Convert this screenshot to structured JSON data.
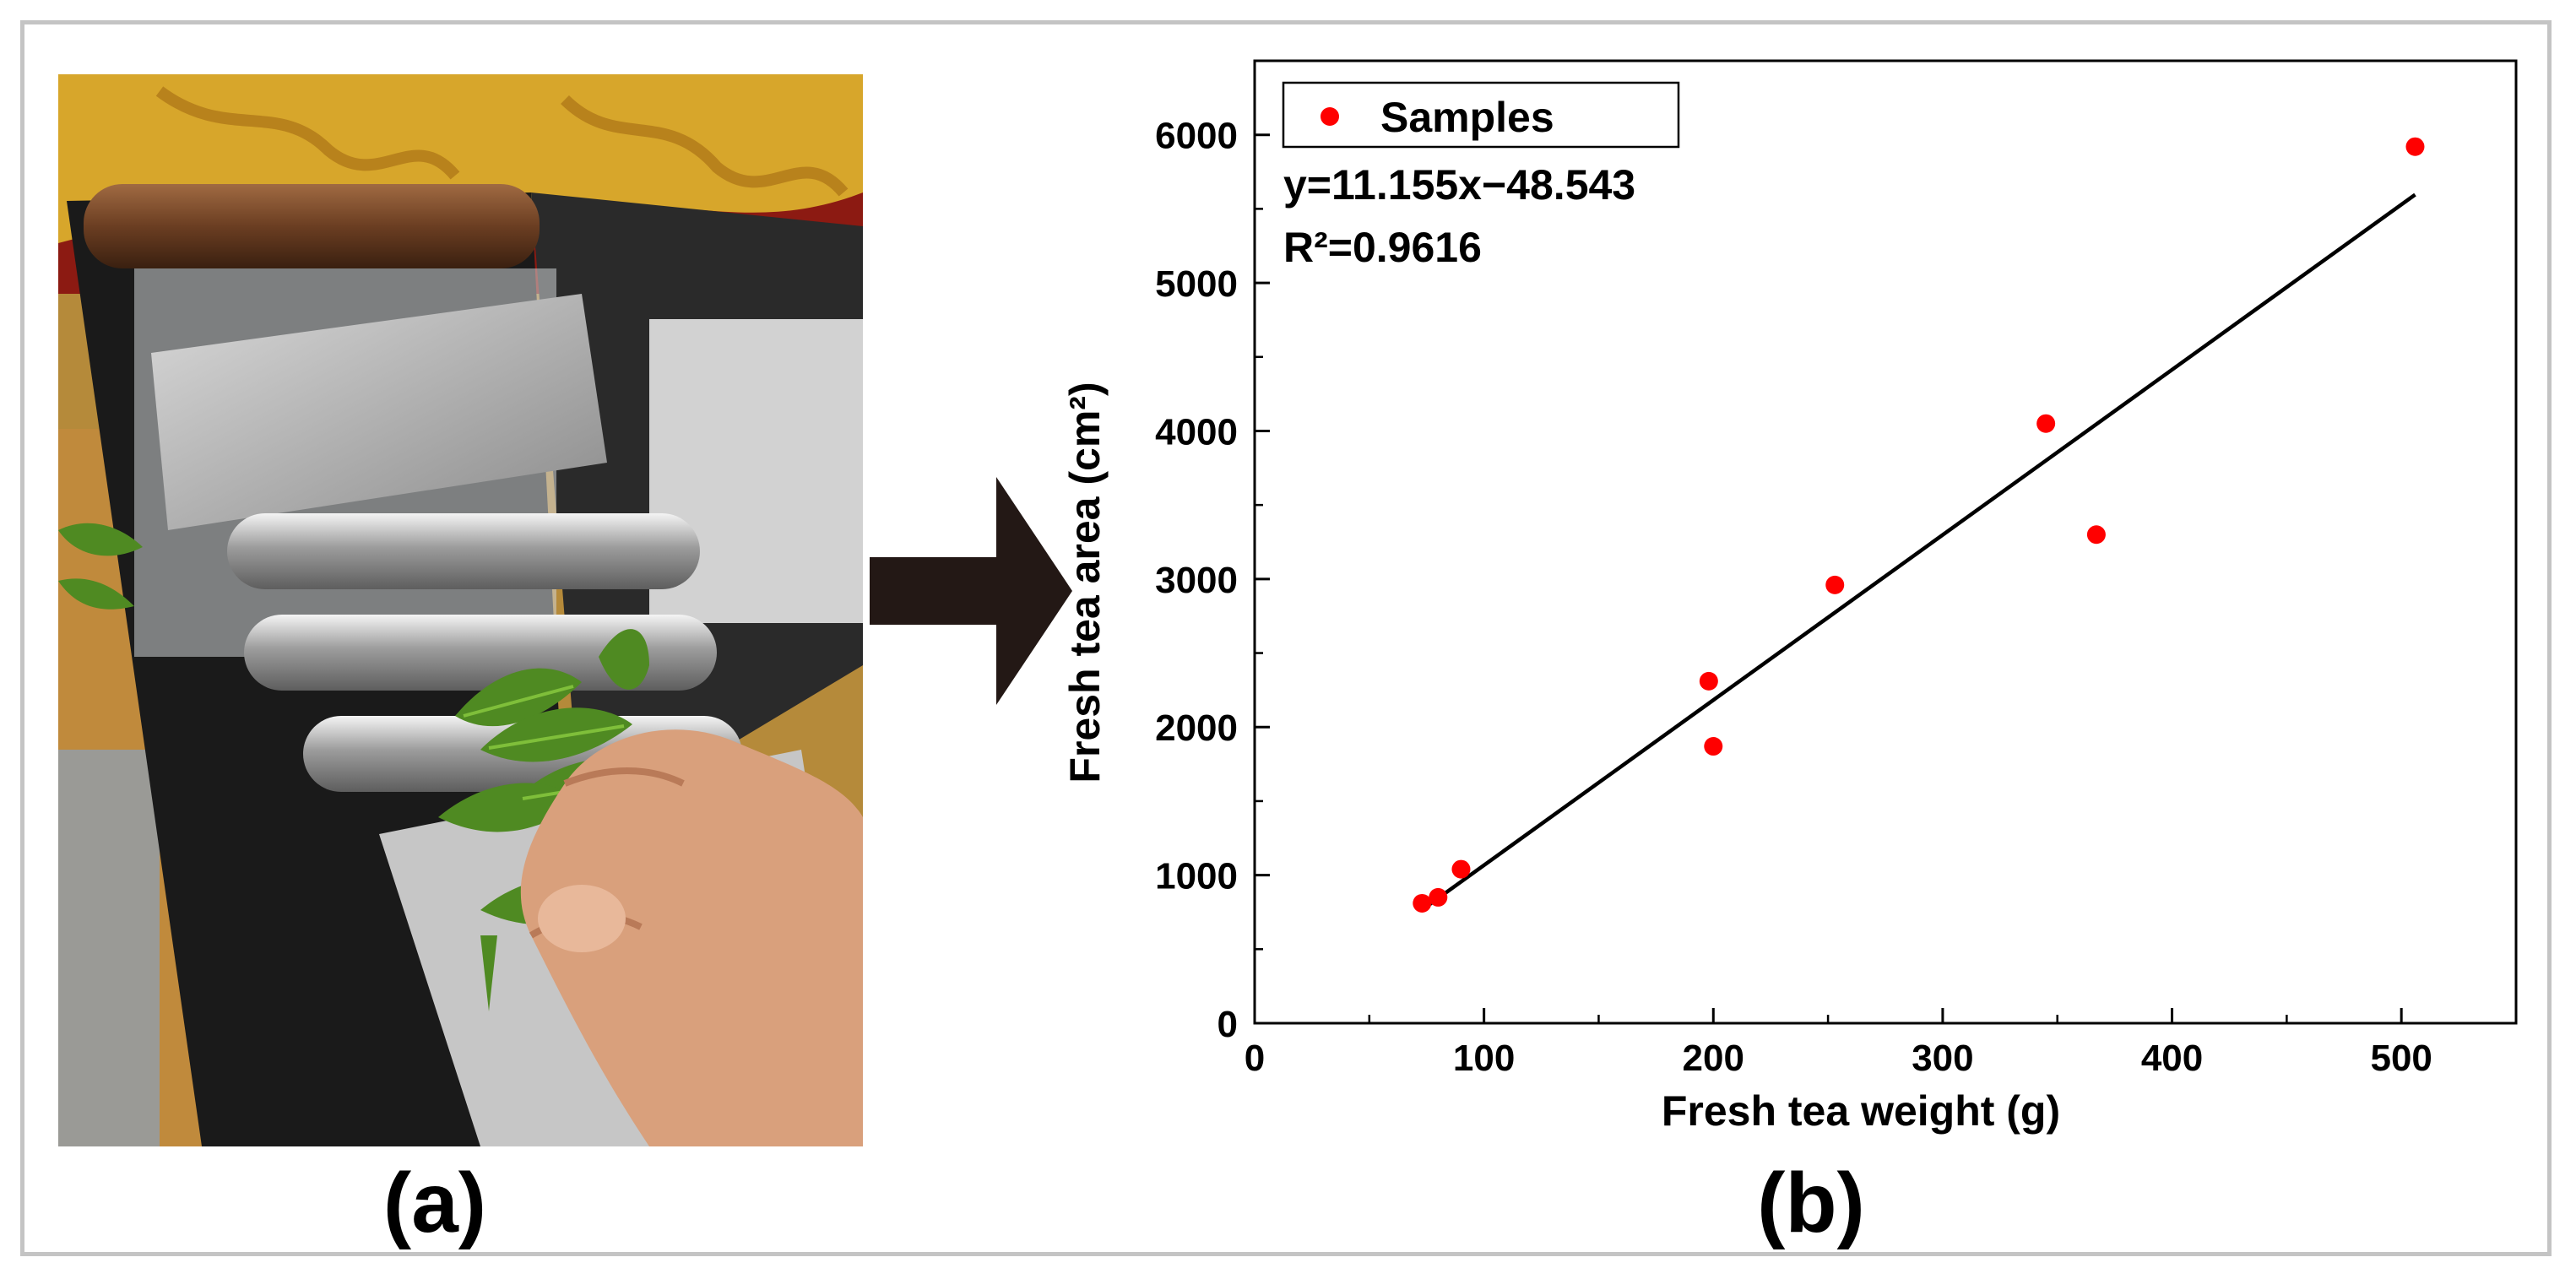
{
  "panels": {
    "a_label": "(a)",
    "b_label": "(b)"
  },
  "photo": {
    "icon": "tea-leaf-area-meter-photo"
  },
  "arrow": {
    "icon": "right-arrow-icon",
    "color": "#231815"
  },
  "chart_data": {
    "type": "scatter",
    "xlabel": "Fresh tea weight (g)",
    "ylabel": "Fresh tea area (cm²)",
    "xlim": [
      0,
      550
    ],
    "ylim": [
      0,
      6500
    ],
    "xticks": [
      0,
      100,
      200,
      300,
      400,
      500
    ],
    "yticks": [
      0,
      1000,
      2000,
      3000,
      4000,
      5000,
      6000
    ],
    "grid": false,
    "legend": {
      "position": "top-left",
      "entries": [
        "Samples"
      ]
    },
    "series": [
      {
        "name": "Samples",
        "color": "#ff0000",
        "points": [
          {
            "x": 73,
            "y": 810
          },
          {
            "x": 80,
            "y": 850
          },
          {
            "x": 90,
            "y": 1040
          },
          {
            "x": 198,
            "y": 2310
          },
          {
            "x": 200,
            "y": 1870
          },
          {
            "x": 253,
            "y": 2960
          },
          {
            "x": 345,
            "y": 4050
          },
          {
            "x": 367,
            "y": 3300
          },
          {
            "x": 506,
            "y": 5920
          }
        ]
      }
    ],
    "fit_line": {
      "slope": 11.155,
      "intercept": -48.543,
      "x_range": [
        73,
        506
      ],
      "color": "#000000"
    },
    "annotations": {
      "equation": "y=11.155x−48.543",
      "r_squared": "R²=0.9616"
    }
  }
}
